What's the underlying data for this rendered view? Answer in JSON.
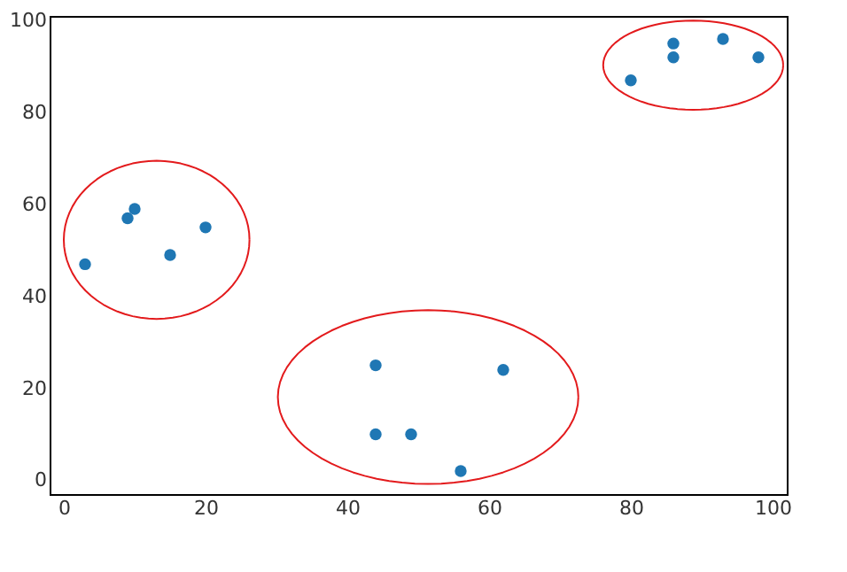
{
  "chart_data": {
    "type": "scatter",
    "xlim": [
      -2,
      102
    ],
    "ylim": [
      -3,
      101
    ],
    "xticks": [
      0,
      20,
      40,
      60,
      80,
      100
    ],
    "yticks": [
      0,
      20,
      40,
      60,
      80,
      100
    ],
    "grid": false,
    "series": [
      {
        "marker": "circle",
        "color": "#1f77b4",
        "x": [
          3,
          9,
          10,
          15,
          20,
          44,
          44,
          49,
          56,
          62,
          80,
          86,
          86,
          93,
          98
        ],
        "values": [
          47,
          57,
          59,
          49,
          55,
          25,
          10,
          10,
          2,
          24,
          87,
          95,
          92,
          96,
          92
        ]
      }
    ]
  }
}
